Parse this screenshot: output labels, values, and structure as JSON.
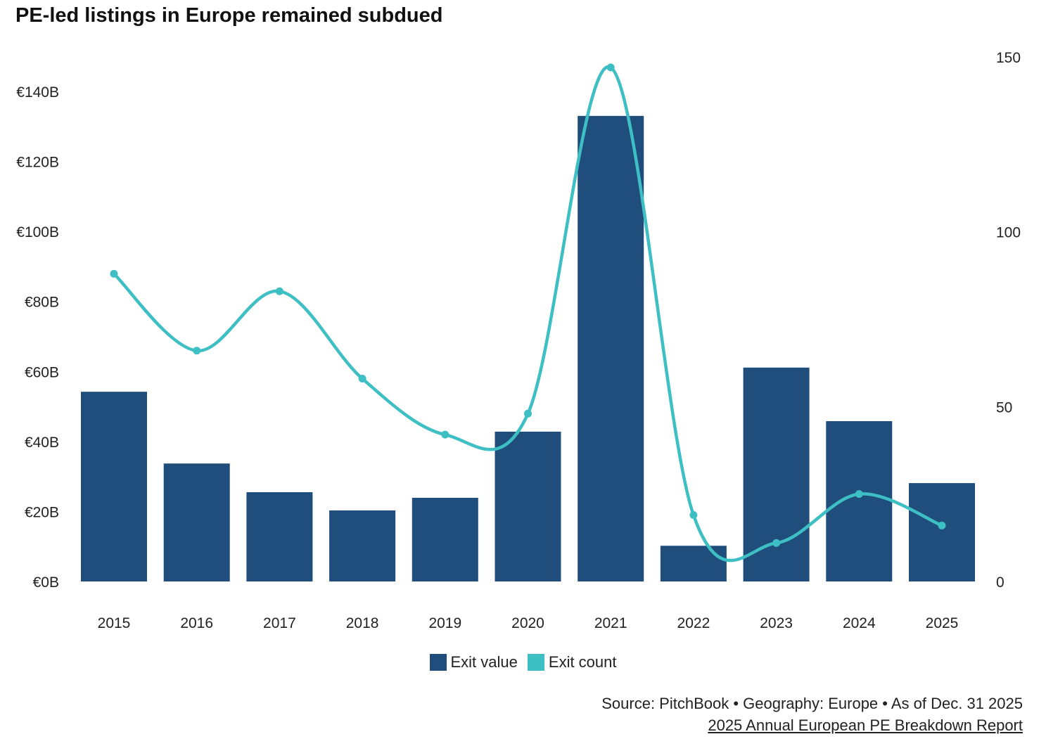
{
  "chart_data": {
    "type": "bar+line",
    "title": "PE-led listings in Europe remained subdued",
    "categories": [
      "2015",
      "2016",
      "2017",
      "2018",
      "2019",
      "2020",
      "2021",
      "2022",
      "2023",
      "2024",
      "2025"
    ],
    "series": [
      {
        "name": "Exit value",
        "type": "bar",
        "axis": "left",
        "color": "#1f4e7d",
        "values": [
          54.2,
          33.7,
          25.5,
          20.3,
          23.9,
          42.8,
          133.0,
          10.2,
          61.1,
          45.8,
          28.1
        ]
      },
      {
        "name": "Exit count",
        "type": "line",
        "axis": "right",
        "color": "#3dbfc4",
        "values": [
          88,
          66,
          83,
          58,
          42,
          48,
          147,
          19,
          11,
          25,
          16
        ]
      }
    ],
    "left_axis": {
      "ylim": [
        0,
        140
      ],
      "ticks": [
        0,
        20,
        40,
        60,
        80,
        100,
        120,
        140
      ],
      "tick_labels": [
        "€0B",
        "€20B",
        "€40B",
        "€60B",
        "€80B",
        "€100B",
        "€120B",
        "€140B"
      ]
    },
    "right_axis": {
      "ylim": [
        0,
        150
      ],
      "ticks": [
        0,
        50,
        100,
        150
      ],
      "tick_labels": [
        "0",
        "50",
        "100",
        "150"
      ]
    },
    "grid": false,
    "legend_position": "bottom"
  },
  "footer": {
    "source": "Source: PitchBook • Geography: Europe • As of Dec. 31 2025",
    "report": "2025 Annual European PE Breakdown Report"
  }
}
